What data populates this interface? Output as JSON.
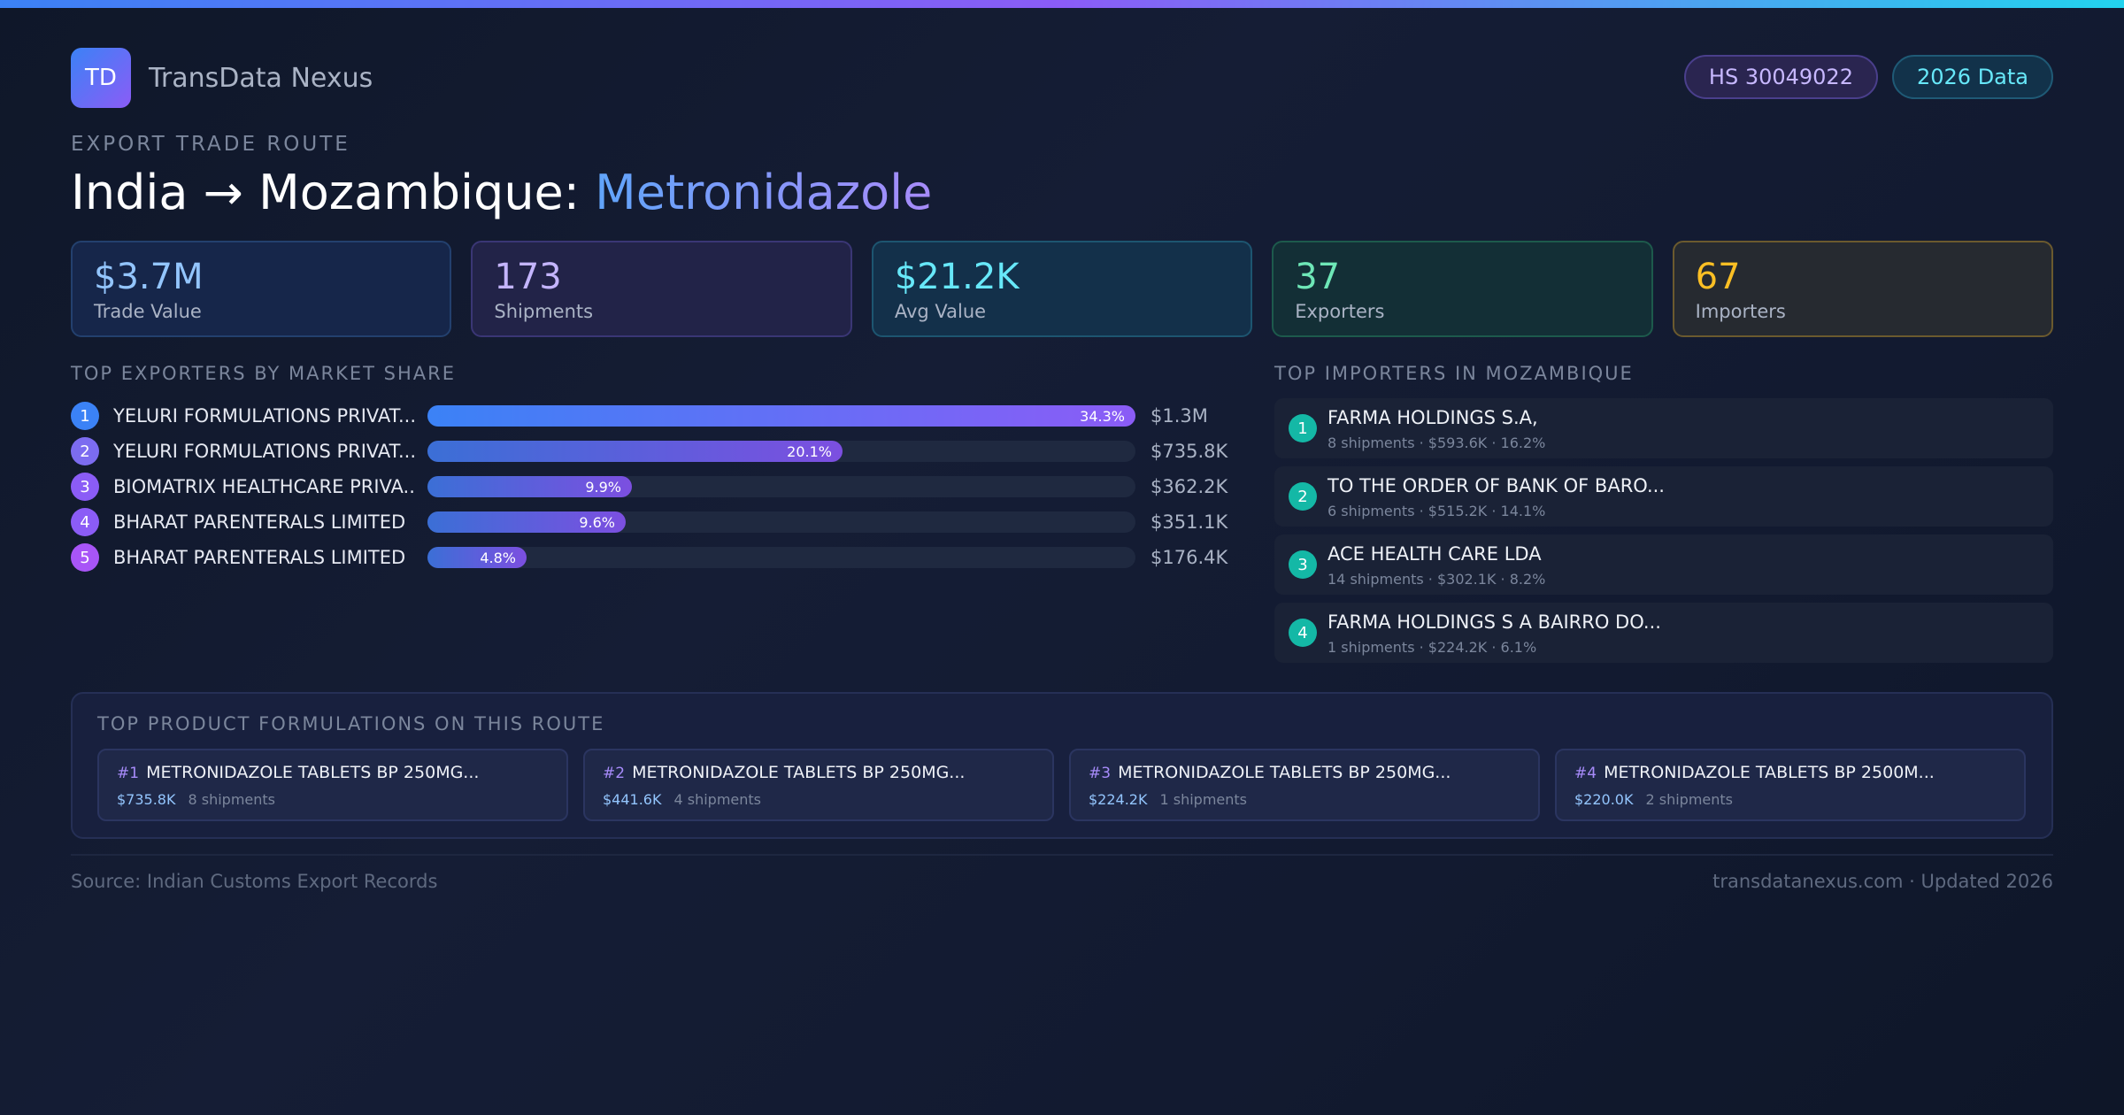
{
  "brand": {
    "logo_text": "TD",
    "name": "TransData Nexus"
  },
  "badges": {
    "hs_code": "HS 30049022",
    "data_year": "2026 Data"
  },
  "header": {
    "eyebrow": "EXPORT TRADE ROUTE",
    "route": "India → Mozambique: ",
    "product": "Metronidazole"
  },
  "stats": [
    {
      "value": "$3.7M",
      "label": "Trade Value"
    },
    {
      "value": "173",
      "label": "Shipments"
    },
    {
      "value": "$21.2K",
      "label": "Avg Value"
    },
    {
      "value": "37",
      "label": "Exporters"
    },
    {
      "value": "67",
      "label": "Importers"
    }
  ],
  "exporters": {
    "title": "TOP EXPORTERS BY MARKET SHARE",
    "rank_colors": [
      "#3b82f6",
      "#7c6cf0",
      "#8b5cf6",
      "#8b5cf6",
      "#a855f7"
    ],
    "items": [
      {
        "rank": "1",
        "name": "YELURI FORMULATIONS PRIVAT...",
        "share": 34.3,
        "share_label": "34.3%",
        "value": "$1.3M"
      },
      {
        "rank": "2",
        "name": "YELURI FORMULATIONS PRIVAT...",
        "share": 20.1,
        "share_label": "20.1%",
        "value": "$735.8K"
      },
      {
        "rank": "3",
        "name": "BIOMATRIX HEALTHCARE PRIVA...",
        "share": 9.9,
        "share_label": "9.9%",
        "value": "$362.2K"
      },
      {
        "rank": "4",
        "name": "BHARAT PARENTERALS LIMITED",
        "share": 9.6,
        "share_label": "9.6%",
        "value": "$351.1K"
      },
      {
        "rank": "5",
        "name": "BHARAT PARENTERALS LIMITED",
        "share": 4.8,
        "share_label": "4.8%",
        "value": "$176.4K"
      }
    ]
  },
  "importers": {
    "title": "TOP IMPORTERS IN MOZAMBIQUE",
    "items": [
      {
        "rank": "1",
        "name": "FARMA HOLDINGS S.A,",
        "detail": "8 shipments · $593.6K · 16.2%"
      },
      {
        "rank": "2",
        "name": "TO THE ORDER OF BANK OF BARO...",
        "detail": "6 shipments · $515.2K · 14.1%"
      },
      {
        "rank": "3",
        "name": "ACE HEALTH CARE LDA",
        "detail": "14 shipments · $302.1K · 8.2%"
      },
      {
        "rank": "4",
        "name": "FARMA HOLDINGS S A BAIRRO DO...",
        "detail": "1 shipments · $224.2K · 6.1%"
      }
    ]
  },
  "formulations": {
    "title": "TOP PRODUCT FORMULATIONS ON THIS ROUTE",
    "items": [
      {
        "num": "#1",
        "name": "METRONIDAZOLE TABLETS BP 250MG...",
        "value": "$735.8K",
        "shipments": "8 shipments"
      },
      {
        "num": "#2",
        "name": "METRONIDAZOLE TABLETS BP 250MG...",
        "value": "$441.6K",
        "shipments": "4 shipments"
      },
      {
        "num": "#3",
        "name": "METRONIDAZOLE TABLETS BP 250MG...",
        "value": "$224.2K",
        "shipments": "1 shipments"
      },
      {
        "num": "#4",
        "name": "METRONIDAZOLE TABLETS BP 2500M...",
        "value": "$220.0K",
        "shipments": "2 shipments"
      }
    ]
  },
  "footer": {
    "source": "Source: Indian Customs Export Records",
    "site": "transdatanexus.com · Updated 2026"
  }
}
